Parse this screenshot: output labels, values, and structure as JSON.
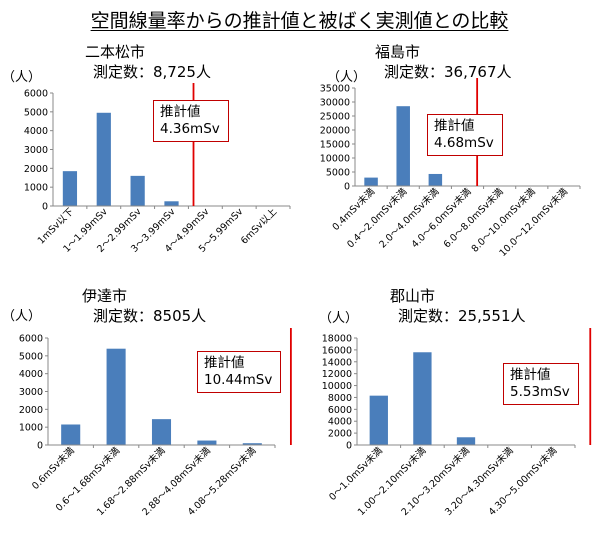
{
  "title": "空間線量率からの推計値と被ばく実測値との比較",
  "colors": {
    "bar": "#4a7ebb",
    "estimate_line": "#e00000",
    "axis": "#888888"
  },
  "chart_data": [
    {
      "type": "bar",
      "city": "二本松市",
      "count_label": "測定数：8,725人",
      "unit": "（人）",
      "categories": [
        "1mSv以下",
        "1～1.99mSv",
        "2～2.99mSv",
        "3～3.99mSv",
        "4～4.99mSv",
        "5～5.99mSv",
        "6mSv以上"
      ],
      "values": [
        1850,
        4950,
        1600,
        250,
        0,
        0,
        0
      ],
      "ylim": [
        0,
        6000
      ],
      "yticks": [
        "0",
        "1000",
        "2000",
        "3000",
        "4000",
        "5000",
        "6000"
      ],
      "estimate_label": "推計値",
      "estimate_value": "4.36mSv",
      "estimate_position": 3.65
    },
    {
      "type": "bar",
      "city": "福島市",
      "count_label": "測定数：36,767人",
      "unit": "（人）",
      "categories": [
        "0.4mSv未満",
        "0.4～2.0mSv未満",
        "2.0～4.0mSv未満",
        "4.0～6.0mSv未満",
        "6.0～8.0mSv未満",
        "8.0～10.0mSv未満",
        "10.0～12.0mSv未満"
      ],
      "values": [
        3000,
        28500,
        4300,
        0,
        0,
        0,
        0
      ],
      "ylim": [
        0,
        35000
      ],
      "yticks": [
        "0",
        "5000",
        "10000",
        "15000",
        "20000",
        "25000",
        "30000",
        "35000"
      ],
      "estimate_label": "推計値",
      "estimate_value": "4.68mSv",
      "estimate_position": 3.3
    },
    {
      "type": "bar",
      "city": "伊達市",
      "count_label": "測定数：8505人",
      "unit": "（人）",
      "categories": [
        "0.6mSv未満",
        "0.6～1.68mSv未満",
        "1.68～2.88mSv未満",
        "2.88～4.08mSv未満",
        "4.08～5.28mSv未満"
      ],
      "values": [
        1150,
        5400,
        1450,
        250,
        100
      ],
      "ylim": [
        0,
        6000
      ],
      "yticks": [
        "0",
        "1000",
        "2000",
        "3000",
        "4000",
        "5000",
        "6000"
      ],
      "estimate_label": "推計値",
      "estimate_value": "10.44mSv",
      "estimate_position": 4.85
    },
    {
      "type": "bar",
      "city": "郡山市",
      "count_label": "測定数：25,551人",
      "unit": "（人）",
      "categories": [
        "0～1.0mSv未満",
        "1.00～2.10mSv未満",
        "2.10～3.20mSv未満",
        "3.20～4.30mSv未満",
        "4.30～5.00mSv未満"
      ],
      "values": [
        8300,
        15600,
        1300,
        0,
        0
      ],
      "ylim": [
        0,
        18000
      ],
      "yticks": [
        "0",
        "2000",
        "4000",
        "6000",
        "8000",
        "10000",
        "12000",
        "14000",
        "16000",
        "18000"
      ],
      "estimate_label": "推計値",
      "estimate_value": "5.53mSv",
      "estimate_position": 4.85
    }
  ]
}
